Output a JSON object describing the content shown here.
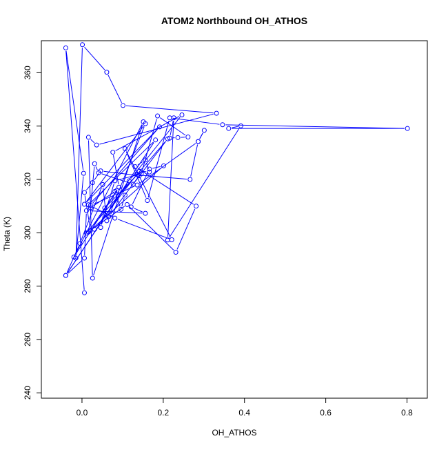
{
  "chart_data": {
    "type": "line",
    "title": "ATOM2 Northbound OH_ATHOS",
    "xlabel": "OH_ATHOS",
    "ylabel": "Theta (K)",
    "xlim": [
      -0.1,
      0.85
    ],
    "ylim": [
      238,
      372
    ],
    "xticks": [
      0.0,
      0.2,
      0.4,
      0.6,
      0.8
    ],
    "xtick_labels": [
      "0.0",
      "0.2",
      "0.4",
      "0.6",
      "0.8"
    ],
    "yticks": [
      240,
      260,
      280,
      300,
      320,
      340,
      360
    ],
    "ytick_labels": [
      "240",
      "260",
      "280",
      "300",
      "320",
      "340",
      "360"
    ],
    "grid": false,
    "legend": "none",
    "color": "#0000ff",
    "marker": "open-circle",
    "series": [
      {
        "x": [
          0.006,
          -0.04,
          0.004,
          -0.015,
          0.001,
          0.061,
          0.101,
          0.331,
          0.036,
          0.016,
          0.026,
          0.151,
          -0.02,
          0.091,
          0.076,
          0.246,
          0.116,
          -0.04,
          0.181,
          0.016,
          0.081,
          0.221,
          0.106,
          0.161,
          0.216,
          0.346,
          0.801,
          0.361,
          0.391,
          0.211,
          0.226,
          0.216,
          0.236,
          0.261,
          0.186,
          0.146,
          0.081,
          0.046,
          0.056,
          0.136,
          0.266,
          0.286,
          0.301,
          0.286,
          0.136,
          0.021,
          0.191,
          0.006,
          0.156,
          0.066,
          0.141,
          0.046,
          0.026,
          0.006,
          0.021,
          0.111,
          0.231,
          0.281,
          0.131,
          0.156,
          0.166,
          0.141,
          0.031,
          0.011,
          0.211,
          0.126,
          0.041,
          0.031,
          0.021,
          0.086,
          0.016,
          0.201,
          0.166,
          0.121,
          0.156,
          0.011,
          0.006,
          -0.04,
          -0.005,
          0.051,
          0.061,
          0.081,
          0.096,
          0.106
        ],
        "y": [
          277.5,
          369.3,
          322.3,
          290.5,
          370.5,
          360.2,
          347.7,
          344.8,
          332.9,
          335.8,
          283,
          341.6,
          290.9,
          317.1,
          330.2,
          344.2,
          319.5,
          284,
          334.8,
          310.5,
          305.5,
          297.4,
          331.5,
          312.1,
          343.1,
          340.5,
          339.1,
          339.1,
          340.1,
          297.3,
          343.1,
          335.5,
          335.7,
          335.9,
          343.8,
          322.1,
          319.5,
          302,
          309.3,
          321.7,
          320,
          334.2,
          338.4,
          334.2,
          317.9,
          310.2,
          339.7,
          310.7,
          340.9,
          306.1,
          321.4,
          323.2,
          318.8,
          315.1,
          300.9,
          310.6,
          292.7,
          310,
          324.8,
          327.3,
          322.8,
          323.1,
          301.3,
          299.9,
          335.2,
          318.2,
          322.5,
          325.9,
          309.4,
          315.9,
          300.3,
          325.1,
          323.9,
          309.7,
          307.3,
          308.3,
          290.5,
          284,
          296,
          318.1,
          304.5,
          315.5,
          308.8,
          314.1
        ]
      }
    ]
  }
}
